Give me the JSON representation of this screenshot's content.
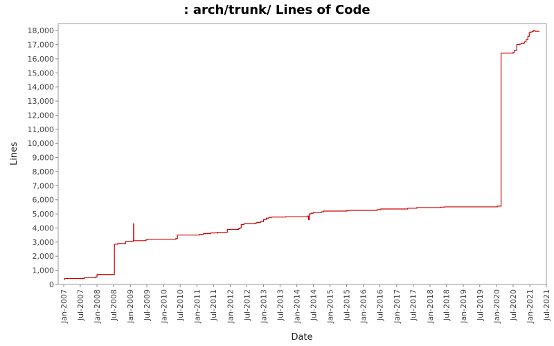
{
  "chart_data": {
    "type": "line",
    "title": ": arch/trunk/ Lines of Code",
    "xlabel": "Date",
    "ylabel": "Lines",
    "ylim": [
      0,
      18500
    ],
    "xlim": [
      "2006-11",
      "2021-07"
    ],
    "y_ticks": [
      "0",
      "1,000",
      "2,000",
      "3,000",
      "4,000",
      "5,000",
      "6,000",
      "7,000",
      "8,000",
      "9,000",
      "10,000",
      "11,000",
      "12,000",
      "13,000",
      "14,000",
      "15,000",
      "16,000",
      "17,000",
      "18,000"
    ],
    "x_ticks": [
      "Jan-2007",
      "Jul-2007",
      "Jan-2008",
      "Jul-2008",
      "Jan-2009",
      "Jul-2009",
      "Jan-2010",
      "Jul-2010",
      "Jan-2011",
      "Jul-2011",
      "Jan-2012",
      "Jul-2012",
      "Jan-2013",
      "Jul-2013",
      "Jan-2014",
      "Jul-2014",
      "Jan-2015",
      "Jul-2015",
      "Jan-2016",
      "Jul-2016",
      "Jan-2017",
      "Jul-2017",
      "Jan-2018",
      "Jul-2018",
      "Jan-2019",
      "Jul-2019",
      "Jan-2020",
      "Jul-2020",
      "Jan-2021",
      "Jul-2021"
    ],
    "grid": false,
    "legend": "none",
    "series": [
      {
        "color": "#cc0000",
        "x": [
          "2007-01-05",
          "2007-01-10",
          "2007-03-01",
          "2007-08-01",
          "2007-08-15",
          "2007-11-01",
          "2007-12-15",
          "2008-01-01",
          "2008-06-20",
          "2008-07-05",
          "2008-07-10",
          "2008-07-25",
          "2008-08-15",
          "2008-10-25",
          "2008-11-10",
          "2009-01-05",
          "2009-02-01",
          "2009-02-05",
          "2009-02-08",
          "2009-05-01",
          "2009-06-20",
          "2009-07-01",
          "2009-12-01",
          "2010-04-01",
          "2010-05-01",
          "2010-05-15",
          "2010-06-01",
          "2010-12-01",
          "2011-02-01",
          "2011-03-01",
          "2011-03-15",
          "2011-06-01",
          "2011-08-01",
          "2011-08-15",
          "2011-10-01",
          "2011-12-01",
          "2012-04-01",
          "2012-04-15",
          "2012-05-01",
          "2012-06-01",
          "2012-09-01",
          "2012-10-01",
          "2012-10-20",
          "2012-12-01",
          "2013-01-01",
          "2013-02-01",
          "2013-03-01",
          "2013-04-01",
          "2013-07-01",
          "2013-09-01",
          "2014-01-01",
          "2014-04-01",
          "2014-05-01",
          "2014-05-10",
          "2014-05-20",
          "2014-06-05",
          "2014-07-01",
          "2014-10-01",
          "2014-10-20",
          "2015-01-01",
          "2015-07-01",
          "2015-07-15",
          "2016-01-01",
          "2016-06-01",
          "2016-07-01",
          "2016-07-10",
          "2017-01-01",
          "2017-05-01",
          "2017-08-01",
          "2017-08-10",
          "2018-01-01",
          "2018-05-01",
          "2018-06-01",
          "2018-06-10",
          "2019-01-01",
          "2019-10-01",
          "2020-01-01",
          "2020-01-10",
          "2020-02-15",
          "2020-02-20",
          "2020-06-01",
          "2020-07-01",
          "2020-07-15",
          "2020-08-01",
          "2020-08-10",
          "2020-09-15",
          "2020-10-01",
          "2020-11-01",
          "2020-11-20",
          "2020-12-10",
          "2020-12-25",
          "2021-01-10",
          "2021-01-25",
          "2021-02-10",
          "2021-02-25",
          "2021-03-15",
          "2021-04-01",
          "2021-04-15"
        ],
        "y": [
          350,
          420,
          420,
          420,
          480,
          480,
          520,
          700,
          700,
          700,
          2850,
          2850,
          2900,
          2900,
          3050,
          3050,
          3100,
          4300,
          3100,
          3100,
          3150,
          3200,
          3200,
          3200,
          3200,
          3250,
          3500,
          3500,
          3550,
          3550,
          3600,
          3650,
          3650,
          3700,
          3700,
          3900,
          3950,
          4000,
          4250,
          4300,
          4300,
          4350,
          4400,
          4450,
          4600,
          4700,
          4750,
          4780,
          4780,
          4800,
          4800,
          4800,
          4850,
          4600,
          5000,
          5050,
          5100,
          5150,
          5200,
          5200,
          5220,
          5250,
          5250,
          5300,
          5300,
          5350,
          5350,
          5400,
          5400,
          5450,
          5450,
          5480,
          5480,
          5500,
          5500,
          5500,
          5500,
          5550,
          5550,
          16400,
          16400,
          16450,
          16600,
          16600,
          17000,
          17050,
          17100,
          17200,
          17350,
          17600,
          17850,
          17900,
          17950,
          18000,
          17950,
          17950,
          17950,
          17950
        ]
      }
    ]
  }
}
